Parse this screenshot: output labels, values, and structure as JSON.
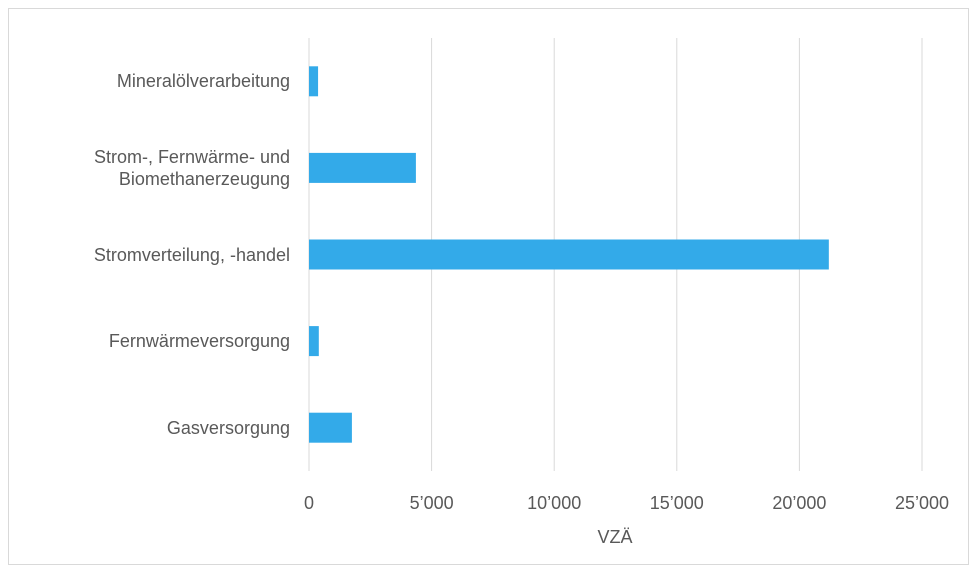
{
  "chart_data": {
    "type": "bar",
    "orientation": "horizontal",
    "categories": [
      "Mineralölverarbeitung",
      "Strom-, Fernwärme- und Biomethanerzeugung",
      "Stromverteilung, -handel",
      "Fernwärmeversorgung",
      "Gasversorgung"
    ],
    "values": [
      370,
      4360,
      21200,
      400,
      1750
    ],
    "color": "#33aae9",
    "xlim": [
      0,
      25000
    ],
    "xticks": [
      0,
      {
        "value": 5000,
        "label": "5’000"
      },
      {
        "value": 10000,
        "label": "10’000"
      },
      {
        "value": 15000,
        "label": "15’000"
      },
      {
        "value": 20000,
        "label": "20’000"
      },
      {
        "value": 25000,
        "label": "25’000"
      }
    ],
    "xlabel": "VZÄ",
    "grid": true
  }
}
